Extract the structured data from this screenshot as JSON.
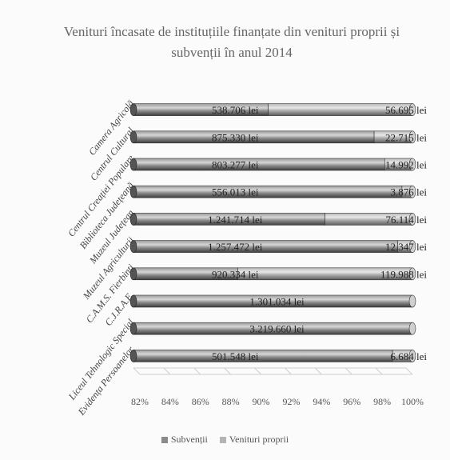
{
  "chart_data": {
    "type": "bar",
    "orientation": "horizontal",
    "stacked": "percent",
    "title": "Venituri încasate de instituțiile finanțate din venituri proprii și subvenții în anul 2014",
    "title_lines": [
      "Venituri încasate de instituțiile finanțate din venituri proprii și",
      "subvenții în anul 2014"
    ],
    "categories": [
      "Camera Agricolă",
      "Centrul Cultural",
      "Centrul Creației Populare",
      "Biblioteca Județeană",
      "Muzeul Județean",
      "Muzeul Agriculturii",
      "C.A.M.S. Fierbinți",
      "C.J.R.A.E.",
      "Liceul Tehnologic Special",
      "Evidența Persoanelor"
    ],
    "series": [
      {
        "name": "Subvenții",
        "color": "#8a8a8a",
        "values": [
          538706,
          875330,
          803277,
          556013,
          1241714,
          1257472,
          920334,
          1301034,
          3219660,
          501548
        ],
        "labels": [
          "538.706 lei",
          "875.330 lei",
          "803.277 lei",
          "556.013 lei",
          "1.241.714 lei",
          "1.257.472 lei",
          "920.334 lei",
          "1.301.034 lei",
          "3.219.660 lei",
          "501.548 lei"
        ]
      },
      {
        "name": "Venituri proprii",
        "color": "#b4b4b4",
        "values": [
          56695,
          22715,
          14992,
          3876,
          76114,
          12347,
          119988,
          null,
          null,
          6684
        ],
        "labels": [
          "56.695 lei",
          "22.715 lei",
          "14.992 lei",
          "3.876 lei",
          "76.114 lei",
          "12.347 lei",
          "119.988 lei",
          "",
          "",
          "6.684 lei"
        ]
      }
    ],
    "x_ticks": [
      "82%",
      "84%",
      "86%",
      "88%",
      "90%",
      "92%",
      "94%",
      "96%",
      "98%",
      "100%"
    ],
    "xlim": [
      82,
      100
    ],
    "legend_position": "bottom"
  }
}
